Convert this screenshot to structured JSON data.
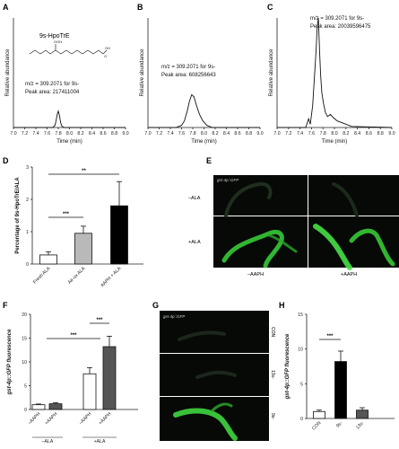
{
  "panels": {
    "A": "A",
    "B": "B",
    "C": "C",
    "D": "D",
    "E": "E",
    "F": "F",
    "G": "G",
    "H": "H"
  },
  "colors": {
    "trace": "#111111",
    "bar_white": "#ffffff",
    "bar_light_gray": "#b9b9b9",
    "bar_dark_gray": "#555555",
    "bar_black": "#000000",
    "fluorescence": "#39c83a",
    "micrograph_bg": "#060906"
  },
  "chart_data": [
    {
      "panel": "A",
      "type": "line",
      "ylabel": "Relative abundance",
      "xlabel": "Time (min)",
      "xlim": [
        7.0,
        9.0
      ],
      "xticks": [
        "7.0",
        "7.2",
        "7.4",
        "7.6",
        "7.8",
        "8.0",
        "8.2",
        "8.4",
        "8.6",
        "8.8",
        "9.0"
      ],
      "x": [
        7.0,
        7.6,
        7.7,
        7.74,
        7.76,
        7.78,
        7.8,
        7.82,
        7.84,
        7.86,
        7.9,
        9.0
      ],
      "y": [
        0,
        0,
        0,
        2,
        6,
        12,
        15,
        11,
        5,
        1.5,
        0,
        0
      ],
      "compound_label": "9s-HpoTrE",
      "annotation_mz": "m/z = 309.2071 for 9s-",
      "annotation_area": "Peak area: 217411004"
    },
    {
      "panel": "B",
      "type": "line",
      "ylabel": "Relative abundance",
      "xlabel": "Time (min)",
      "xlim": [
        7.0,
        9.0
      ],
      "xticks": [
        "7.0",
        "7.2",
        "7.4",
        "7.6",
        "7.8",
        "8.0",
        "8.2",
        "8.4",
        "8.6",
        "8.8",
        "9.0"
      ],
      "x": [
        7.0,
        7.5,
        7.6,
        7.65,
        7.7,
        7.74,
        7.78,
        7.82,
        7.86,
        7.92,
        7.98,
        8.05,
        8.15,
        9.0
      ],
      "y": [
        0,
        0,
        2,
        6,
        15,
        24,
        30,
        28,
        21,
        12,
        6,
        2,
        0,
        0
      ],
      "annotation_mz": "m/z = 309.2071 for 9s-",
      "annotation_area": "Peak area: 608256643"
    },
    {
      "panel": "C",
      "type": "line",
      "ylabel": "Relative abundance",
      "xlabel": "Time (min)",
      "xlim": [
        7.0,
        9.0
      ],
      "xticks": [
        "7.0",
        "7.2",
        "7.4",
        "7.6",
        "7.8",
        "8.0",
        "8.2",
        "8.4",
        "8.6",
        "8.8",
        "9.0"
      ],
      "x": [
        7.0,
        7.5,
        7.55,
        7.58,
        7.62,
        7.65,
        7.68,
        7.7,
        7.72,
        7.74,
        7.76,
        7.78,
        7.81,
        7.84,
        7.88,
        7.93,
        7.98,
        8.05,
        8.15,
        8.3,
        9.0
      ],
      "y": [
        0,
        0,
        8,
        3,
        20,
        45,
        70,
        92,
        100,
        70,
        48,
        32,
        22,
        14,
        10,
        12,
        9,
        6,
        4,
        1,
        0
      ],
      "annotation_mz": "m/z = 309.2071 for 9s-",
      "annotation_area": "Peak area: 20039596475"
    },
    {
      "panel": "D",
      "type": "bar",
      "ylabel": "Percentage of 9s-HpoTrE/ALA",
      "ylim": [
        0,
        3
      ],
      "yticks": [
        "0",
        "1",
        "2",
        "3"
      ],
      "categories": [
        "Fresh ALA",
        "Air-ox ALA",
        "AAPH + ALA"
      ],
      "values": [
        0.28,
        0.95,
        1.8
      ],
      "errors": [
        0.1,
        0.22,
        0.75
      ],
      "significance": [
        "***",
        "**"
      ]
    },
    {
      "panel": "F",
      "type": "bar",
      "ylabel": "gst-4p::GFP fluorescence",
      "ylim": [
        0,
        20
      ],
      "yticks": [
        "0",
        "5",
        "10",
        "15",
        "20"
      ],
      "categories": [
        "–AAPH",
        "+AAPH",
        "–AAPH",
        "+AAPH"
      ],
      "groups": [
        "–ALA",
        "+ALA"
      ],
      "values": [
        1.0,
        1.2,
        7.5,
        13.2
      ],
      "errors": [
        0.15,
        0.2,
        1.3,
        2.2
      ],
      "significance": [
        "***",
        "***"
      ]
    },
    {
      "panel": "H",
      "type": "bar",
      "ylabel": "gst-4p::GFP fluorescence",
      "ylim": [
        0,
        15
      ],
      "yticks": [
        "0",
        "5",
        "10",
        "15"
      ],
      "categories": [
        "CON",
        "9s-",
        "13s-"
      ],
      "values": [
        1.0,
        8.2,
        1.2
      ],
      "errors": [
        0.2,
        1.5,
        0.35
      ],
      "significance": [
        "***"
      ]
    }
  ],
  "panel_E": {
    "strain": "gst-4p::GFP",
    "rows": [
      "–ALA",
      "+ALA"
    ],
    "cols": [
      "–AAPH",
      "+AAPH"
    ]
  },
  "panel_G": {
    "strain": "gst-4p::GFP",
    "rows": [
      "CON",
      "13s-",
      "9s-"
    ]
  }
}
